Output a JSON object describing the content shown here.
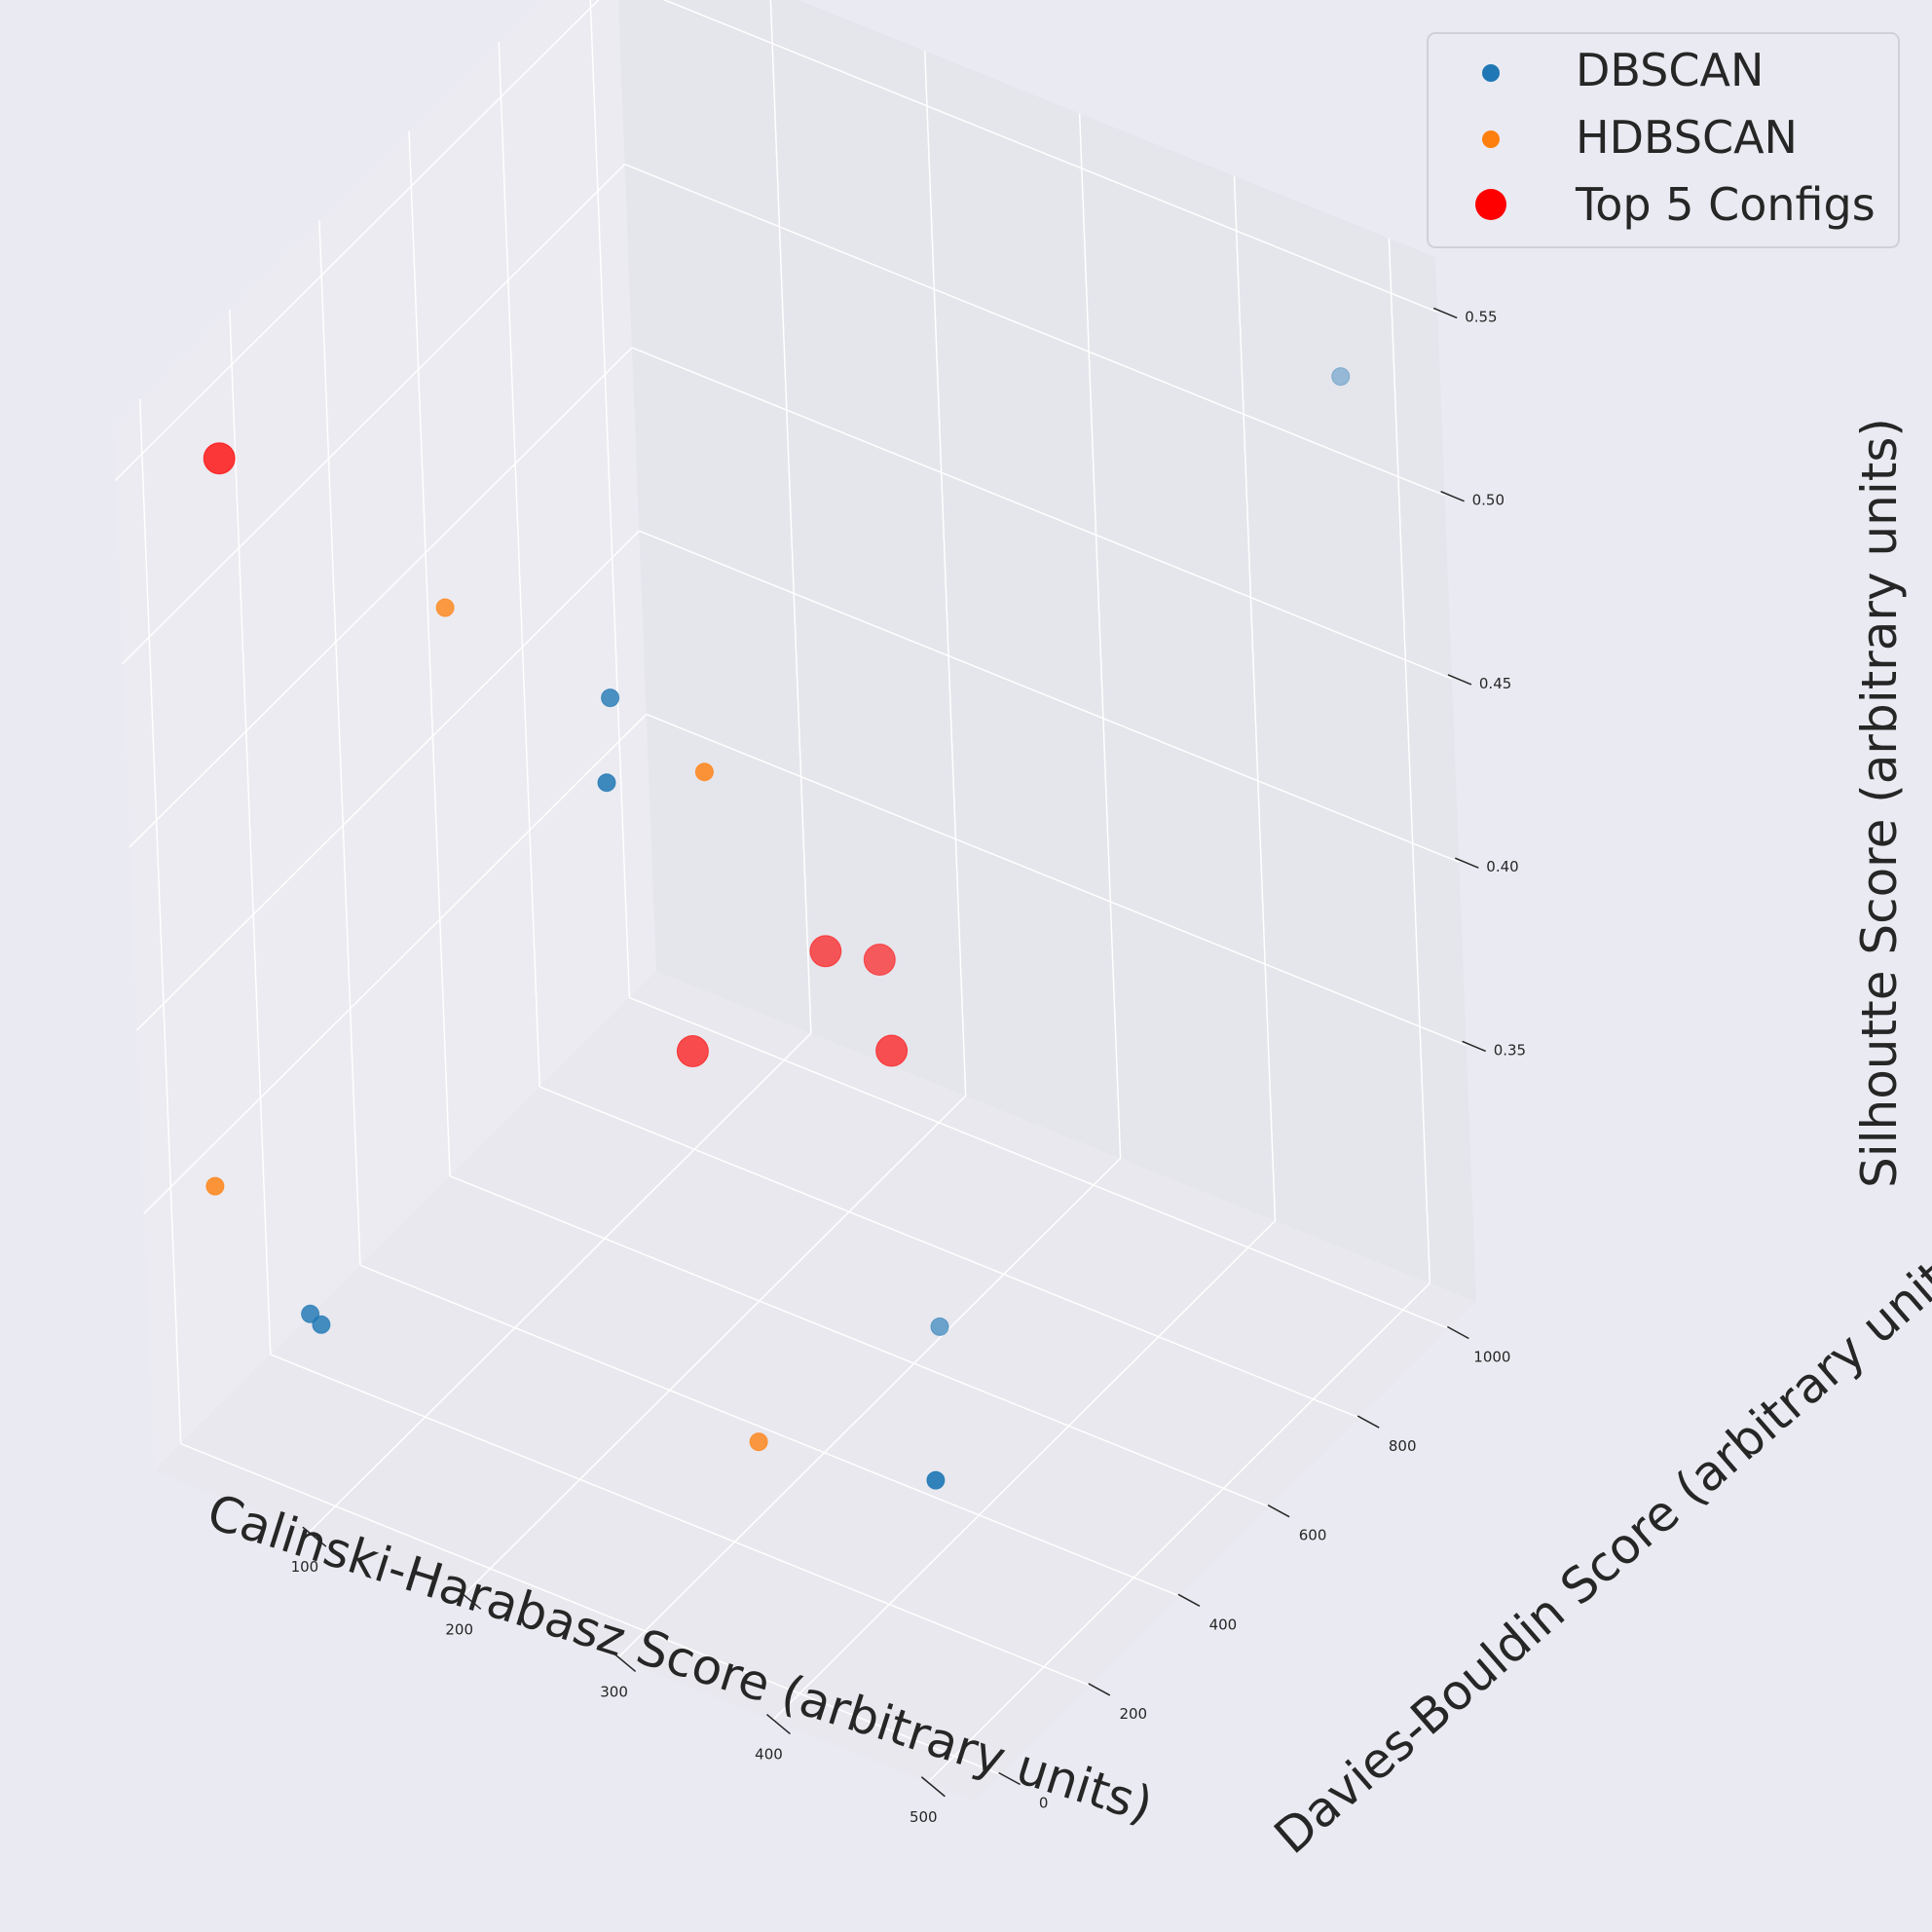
{
  "chart_data": {
    "type": "scatter",
    "projection": "3d",
    "background": "#eaeaf2",
    "pane_color": "#e5e5ec",
    "grid": true,
    "legend_position": "top-right",
    "xlabel": "Calinski-Harabasz Score (arbitrary units)",
    "ylabel": "Davies-Bouldin Score (arbitrary units)",
    "zlabel": "Silhoutte Score (arbitrary units)",
    "xlim": [
      0,
      530
    ],
    "ylim": [
      -60,
      1060
    ],
    "zlim": [
      0.28,
      0.565
    ],
    "x_ticks": [
      100,
      200,
      300,
      400,
      500
    ],
    "y_ticks": [
      0,
      200,
      400,
      600,
      800,
      1000
    ],
    "z_ticks": [
      0.35,
      0.4,
      0.45,
      0.5,
      0.55
    ],
    "x_tick_labels": [
      "100",
      "200",
      "300",
      "400",
      "500"
    ],
    "y_tick_labels": [
      "0",
      "200",
      "400",
      "600",
      "800",
      "1000"
    ],
    "z_tick_labels": [
      "0.35",
      "0.40",
      "0.45",
      "0.50",
      "0.55"
    ],
    "series": [
      {
        "name": "DBSCAN",
        "color": "#1f77b4",
        "marker_size": "small",
        "points": [
          {
            "x": 452,
            "y": 140,
            "z": 0.33
          },
          {
            "x": 330,
            "y": 560,
            "z": 0.3
          },
          {
            "x": 240,
            "y": 200,
            "z": 0.5
          },
          {
            "x": 260,
            "y": 120,
            "z": 0.49
          },
          {
            "x": 480,
            "y": 1010,
            "z": 0.53
          },
          {
            "x": 80,
            "y": 50,
            "z": 0.32
          },
          {
            "x": 70,
            "y": 60,
            "z": 0.32
          }
        ]
      },
      {
        "name": "HDBSCAN",
        "color": "#ff7f0e",
        "marker_size": "small",
        "points": [
          {
            "x": 140,
            "y": 180,
            "z": 0.51
          },
          {
            "x": 300,
            "y": 200,
            "z": 0.49
          },
          {
            "x": 300,
            "y": 260,
            "z": 0.3
          },
          {
            "x": 20,
            "y": 30,
            "z": 0.35
          }
        ]
      },
      {
        "name": "Top 5 Configs",
        "color": "#ff0000",
        "marker_size": "large",
        "points": [
          {
            "x": 20,
            "y": 100,
            "z": 0.54
          },
          {
            "x": 280,
            "y": 510,
            "z": 0.4
          },
          {
            "x": 300,
            "y": 560,
            "z": 0.395
          },
          {
            "x": 230,
            "y": 380,
            "z": 0.38
          },
          {
            "x": 330,
            "y": 480,
            "z": 0.385
          }
        ]
      }
    ]
  }
}
